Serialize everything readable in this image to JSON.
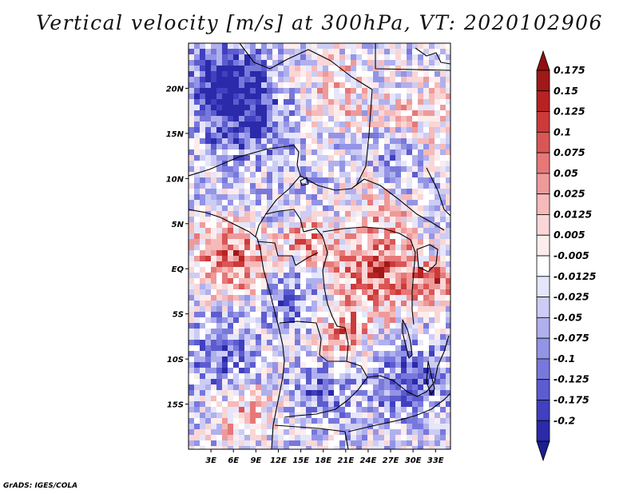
{
  "title": "Vertical velocity [m/s] at 300hPa, VT: 2020102906",
  "credit": "GrADS: IGES/COLA",
  "map": {
    "lon_range": [
      0,
      35
    ],
    "lat_range": [
      -20,
      25
    ],
    "lat_ticks": [
      {
        "value": 20,
        "label": "20N"
      },
      {
        "value": 15,
        "label": "15N"
      },
      {
        "value": 10,
        "label": "10N"
      },
      {
        "value": 5,
        "label": "5N"
      },
      {
        "value": 0,
        "label": "EQ"
      },
      {
        "value": -5,
        "label": "5S"
      },
      {
        "value": -10,
        "label": "10S"
      },
      {
        "value": -15,
        "label": "15S"
      }
    ],
    "lon_ticks": [
      {
        "value": 3,
        "label": "3E"
      },
      {
        "value": 6,
        "label": "6E"
      },
      {
        "value": 9,
        "label": "9E"
      },
      {
        "value": 12,
        "label": "12E"
      },
      {
        "value": 15,
        "label": "15E"
      },
      {
        "value": 18,
        "label": "18E"
      },
      {
        "value": 21,
        "label": "21E"
      },
      {
        "value": 24,
        "label": "24E"
      },
      {
        "value": 27,
        "label": "27E"
      },
      {
        "value": 30,
        "label": "30E"
      },
      {
        "value": 33,
        "label": "33E"
      }
    ]
  },
  "colorbar": {
    "levels": [
      {
        "label": "0.175",
        "color": "#a01818"
      },
      {
        "label": "0.15",
        "color": "#b82222"
      },
      {
        "label": "0.125",
        "color": "#cc3a3a"
      },
      {
        "label": "0.1",
        "color": "#da5656"
      },
      {
        "label": "0.075",
        "color": "#e67878"
      },
      {
        "label": "0.05",
        "color": "#ef9a9a"
      },
      {
        "label": "0.025",
        "color": "#f6baba"
      },
      {
        "label": "0.0125",
        "color": "#fad6d6"
      },
      {
        "label": "0.005",
        "color": "#fdecec"
      },
      {
        "label": "-0.005",
        "color": "#ffffff"
      },
      {
        "label": "-0.0125",
        "color": "#e6e6fa"
      },
      {
        "label": "-0.025",
        "color": "#ccccf4"
      },
      {
        "label": "-0.05",
        "color": "#b0b0ee"
      },
      {
        "label": "-0.075",
        "color": "#9494e6"
      },
      {
        "label": "-0.1",
        "color": "#7878dc"
      },
      {
        "label": "-0.125",
        "color": "#5c5cd0"
      },
      {
        "label": "-0.175",
        "color": "#4040c0"
      },
      {
        "label": "-0.2",
        "color": "#2a2aaa"
      }
    ],
    "top_color": "#901010",
    "bottom_color": "#1e1e8e"
  }
}
